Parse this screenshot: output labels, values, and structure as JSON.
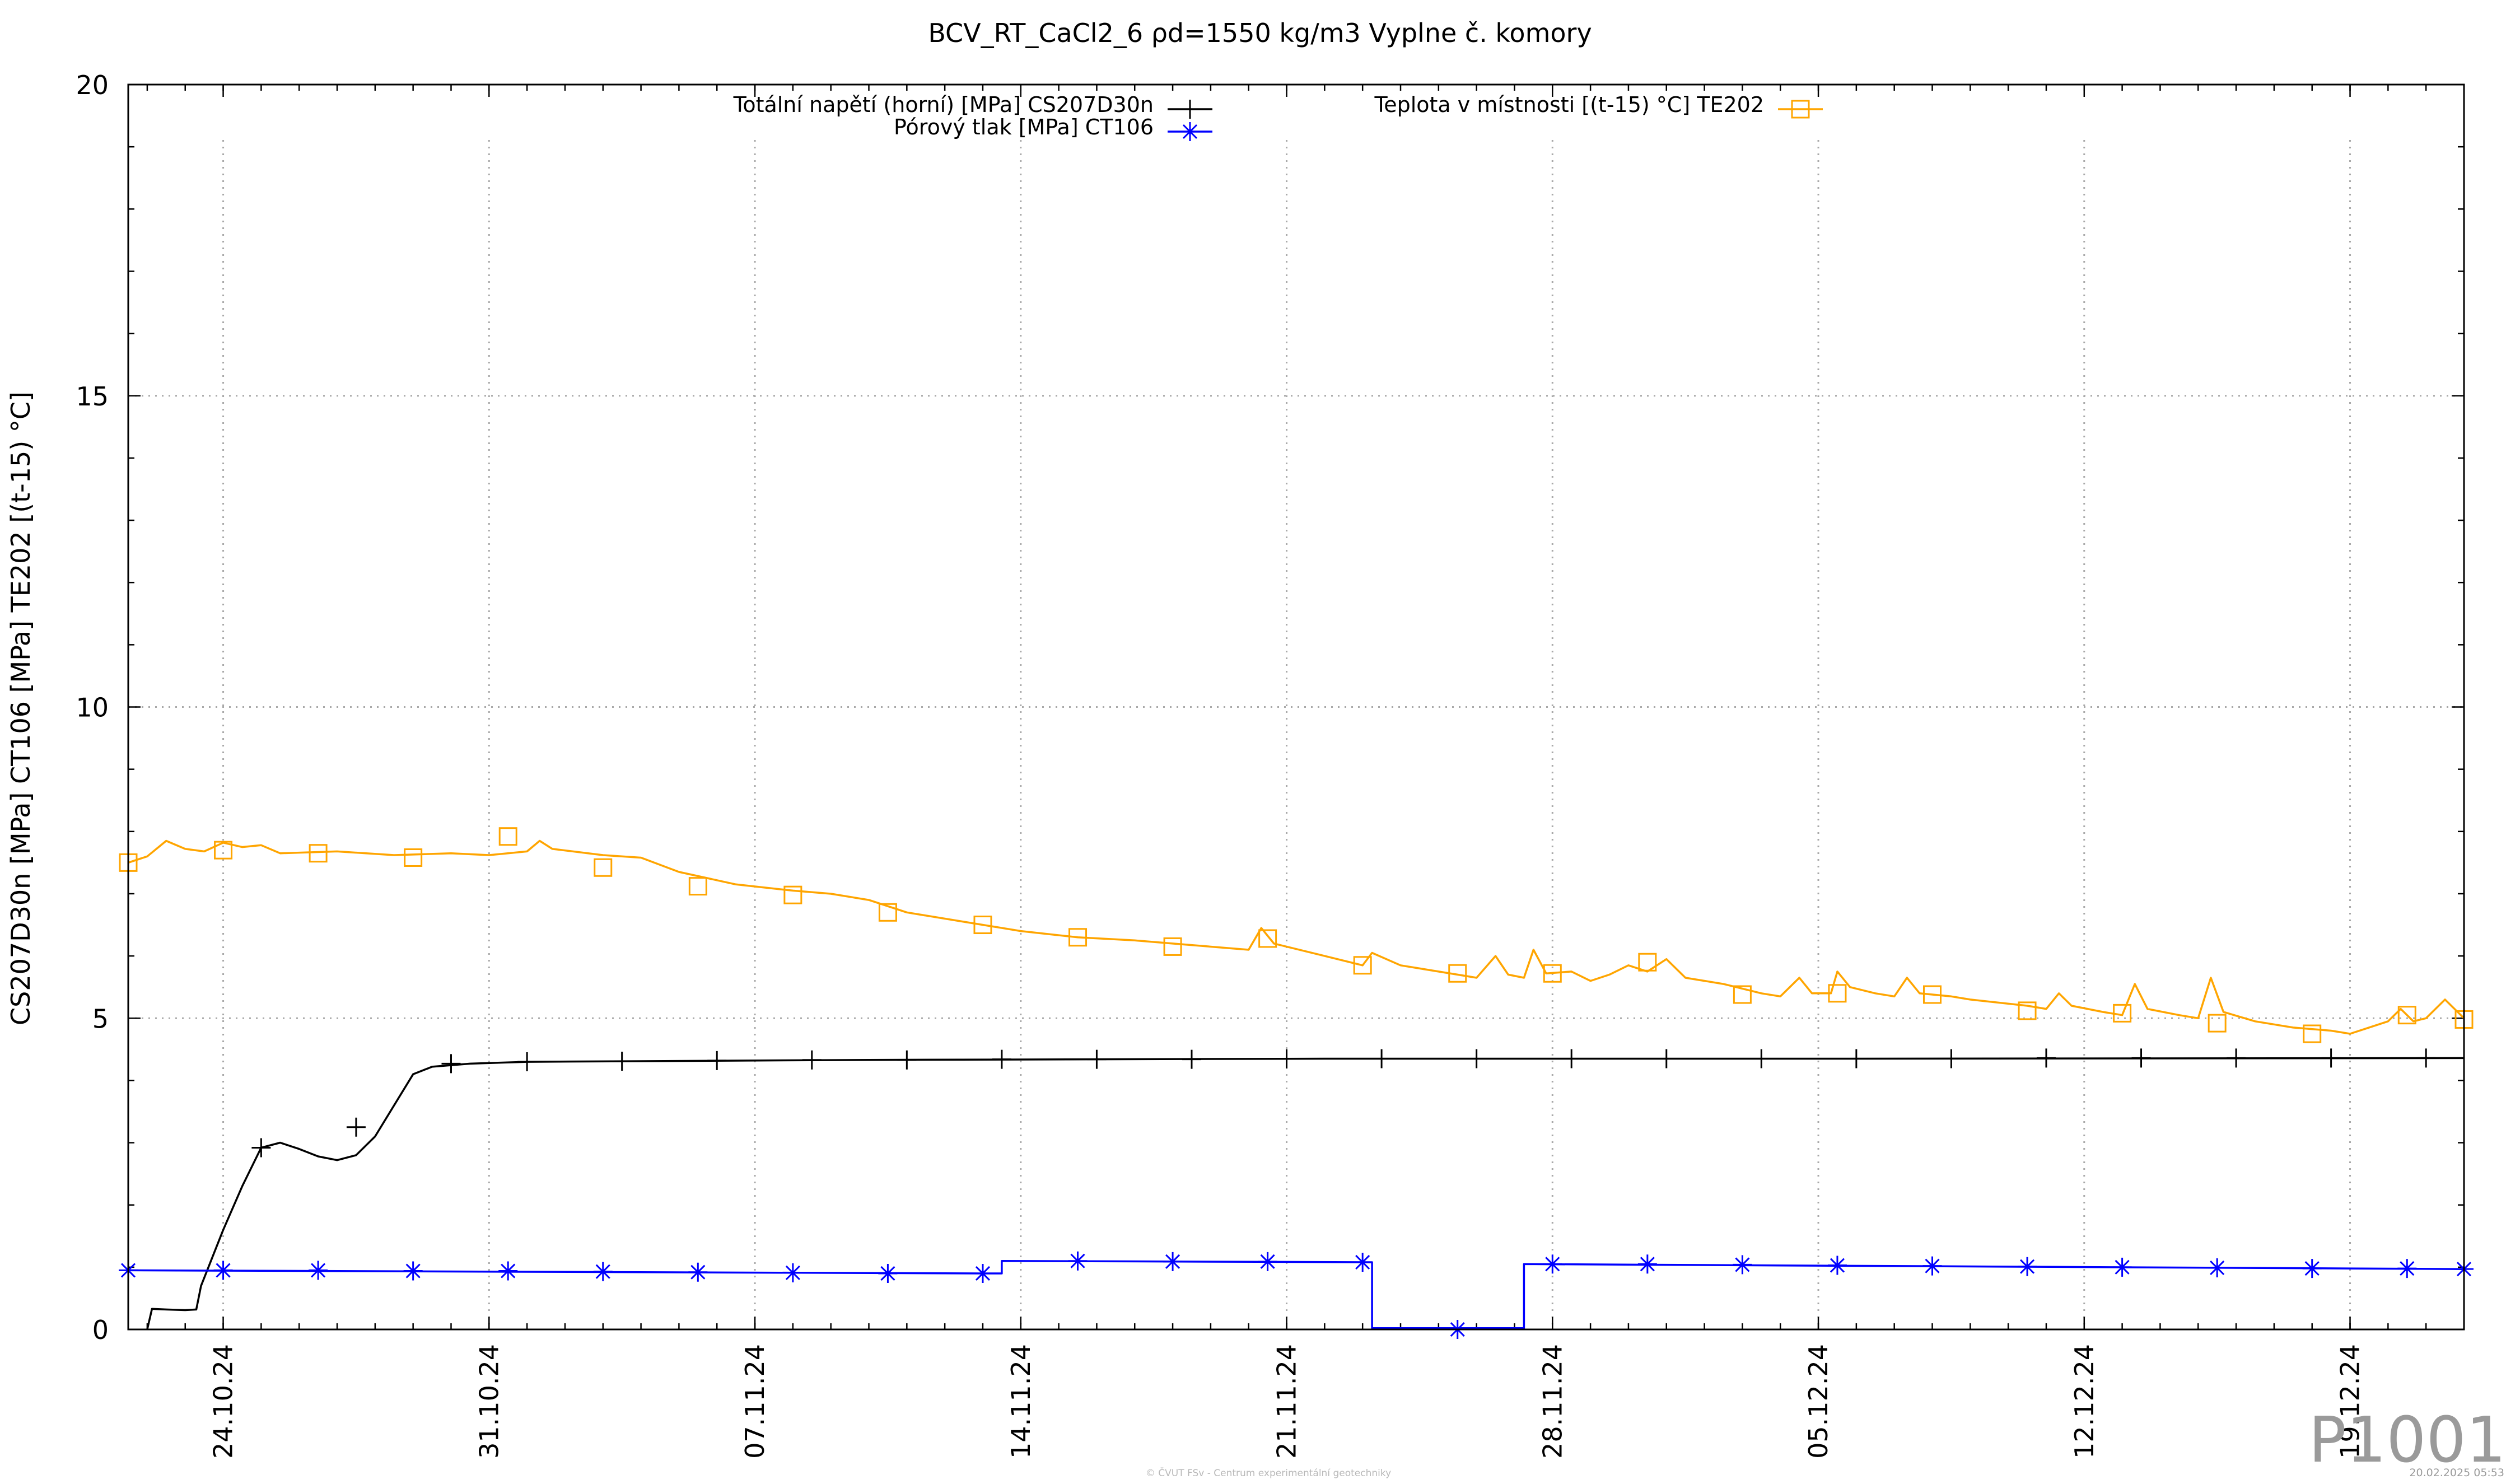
{
  "chart_data": {
    "type": "line",
    "title": "BCV_RT_CaCl2_6 ρd=1550 kg/m3 Vyplne č. komory",
    "ylabel": "CS207D30n [MPa] CT106 [MPa] TE202 [(t-15) °C]",
    "xlabel": "",
    "ylim": [
      0,
      20
    ],
    "xlim": [
      "2024-10-21T12:00",
      "2024-12-22T00:00"
    ],
    "grid": true,
    "legend_placement": "top",
    "yticks": [
      "0",
      "5",
      "10",
      "15",
      "20"
    ],
    "xticks": [
      "24.10.24",
      "31.10.24",
      "07.11.24",
      "14.11.24",
      "21.11.24",
      "28.11.24",
      "05.12.24",
      "12.12.24",
      "19.12.24"
    ],
    "series": [
      {
        "name": "Totální napětí (horní) [MPa] CS207D30n",
        "color": "#000000",
        "marker": "plus",
        "points": [
          [
            "2024-10-22T00:00",
            0.0
          ],
          [
            "2024-10-22T03:00",
            0.33
          ],
          [
            "2024-10-22T12:00",
            0.32
          ],
          [
            "2024-10-23T00:00",
            0.31
          ],
          [
            "2024-10-23T07:00",
            0.32
          ],
          [
            "2024-10-23T10:00",
            0.7
          ],
          [
            "2024-10-24T00:00",
            1.6
          ],
          [
            "2024-10-24T12:00",
            2.3
          ],
          [
            "2024-10-25T00:00",
            2.92
          ],
          [
            "2024-10-25T12:00",
            3.0
          ],
          [
            "2024-10-26T00:00",
            2.9
          ],
          [
            "2024-10-26T12:00",
            2.78
          ],
          [
            "2024-10-27T00:00",
            2.72
          ],
          [
            "2024-10-27T12:00",
            2.8
          ],
          [
            "2024-10-28T00:00",
            3.1
          ],
          [
            "2024-10-28T12:00",
            3.6
          ],
          [
            "2024-10-29T00:00",
            4.1
          ],
          [
            "2024-10-29T12:00",
            4.22
          ],
          [
            "2024-10-30T12:00",
            4.27
          ],
          [
            "2024-11-01T00:00",
            4.3
          ],
          [
            "2024-11-10T00:00",
            4.33
          ],
          [
            "2024-11-22T00:00",
            4.35
          ],
          [
            "2024-12-05T00:00",
            4.35
          ],
          [
            "2024-12-22T00:00",
            4.36
          ]
        ],
        "marker_points": [
          [
            "2024-10-25T00:00",
            2.92
          ],
          [
            "2024-10-27T12:00",
            3.25
          ],
          [
            "2024-10-30T00:00",
            4.27
          ],
          [
            "2024-11-01T00:00",
            4.3
          ],
          [
            "2024-11-03T12:00",
            4.31
          ],
          [
            "2024-11-06T00:00",
            4.32
          ],
          [
            "2024-11-08T12:00",
            4.33
          ],
          [
            "2024-11-11T00:00",
            4.33
          ],
          [
            "2024-11-13T12:00",
            4.34
          ],
          [
            "2024-11-16T00:00",
            4.34
          ],
          [
            "2024-11-18T12:00",
            4.34
          ],
          [
            "2024-11-21T00:00",
            4.35
          ],
          [
            "2024-11-23T12:00",
            4.35
          ],
          [
            "2024-11-26T00:00",
            4.35
          ],
          [
            "2024-11-28T12:00",
            4.35
          ],
          [
            "2024-12-01T00:00",
            4.35
          ],
          [
            "2024-12-03T12:00",
            4.35
          ],
          [
            "2024-12-06T00:00",
            4.35
          ],
          [
            "2024-12-08T12:00",
            4.35
          ],
          [
            "2024-12-11T00:00",
            4.36
          ],
          [
            "2024-12-13T12:00",
            4.36
          ],
          [
            "2024-12-16T00:00",
            4.36
          ],
          [
            "2024-12-18T12:00",
            4.36
          ],
          [
            "2024-12-21T00:00",
            4.36
          ]
        ]
      },
      {
        "name": "Pórový tlak [MPa] CT106",
        "color": "#0000ff",
        "marker": "star",
        "points": [
          [
            "2024-10-21T12:00",
            0.95
          ],
          [
            "2024-11-13T00:00",
            0.9
          ],
          [
            "2024-11-13T12:00",
            0.9
          ],
          [
            "2024-11-13T12:00",
            1.1
          ],
          [
            "2024-11-23T06:00",
            1.08
          ],
          [
            "2024-11-23T06:00",
            0.02
          ],
          [
            "2024-11-27T06:00",
            0.02
          ],
          [
            "2024-11-27T06:00",
            1.05
          ],
          [
            "2024-12-22T00:00",
            0.97
          ]
        ],
        "marker_points": [
          [
            "2024-10-21T12:00",
            0.95
          ],
          [
            "2024-10-24T00:00",
            0.95
          ],
          [
            "2024-10-26T12:00",
            0.95
          ],
          [
            "2024-10-29T00:00",
            0.94
          ],
          [
            "2024-10-31T12:00",
            0.94
          ],
          [
            "2024-11-03T00:00",
            0.93
          ],
          [
            "2024-11-05T12:00",
            0.92
          ],
          [
            "2024-11-08T00:00",
            0.91
          ],
          [
            "2024-11-10T12:00",
            0.9
          ],
          [
            "2024-11-13T00:00",
            0.9
          ],
          [
            "2024-11-15T12:00",
            1.1
          ],
          [
            "2024-11-18T00:00",
            1.09
          ],
          [
            "2024-11-20T12:00",
            1.09
          ],
          [
            "2024-11-23T00:00",
            1.08
          ],
          [
            "2024-11-25T12:00",
            0.0
          ],
          [
            "2024-11-28T00:00",
            1.05
          ],
          [
            "2024-11-30T12:00",
            1.05
          ],
          [
            "2024-12-03T00:00",
            1.04
          ],
          [
            "2024-12-05T12:00",
            1.03
          ],
          [
            "2024-12-08T00:00",
            1.02
          ],
          [
            "2024-12-10T12:00",
            1.01
          ],
          [
            "2024-12-13T00:00",
            1.0
          ],
          [
            "2024-12-15T12:00",
            0.99
          ],
          [
            "2024-12-18T00:00",
            0.98
          ],
          [
            "2024-12-20T12:00",
            0.98
          ],
          [
            "2024-12-22T00:00",
            0.97
          ]
        ]
      },
      {
        "name": "Teplota v místnosti [(t-15) °C] TE202",
        "color": "#ffa500",
        "marker": "square",
        "points": [
          [
            "2024-10-21T12:00",
            7.5
          ],
          [
            "2024-10-22T00:00",
            7.6
          ],
          [
            "2024-10-22T12:00",
            7.85
          ],
          [
            "2024-10-23T00:00",
            7.72
          ],
          [
            "2024-10-23T12:00",
            7.68
          ],
          [
            "2024-10-24T00:00",
            7.82
          ],
          [
            "2024-10-24T12:00",
            7.75
          ],
          [
            "2024-10-25T00:00",
            7.78
          ],
          [
            "2024-10-25T12:00",
            7.65
          ],
          [
            "2024-10-27T00:00",
            7.68
          ],
          [
            "2024-10-28T12:00",
            7.62
          ],
          [
            "2024-10-30T00:00",
            7.65
          ],
          [
            "2024-10-31T00:00",
            7.62
          ],
          [
            "2024-11-01T00:00",
            7.68
          ],
          [
            "2024-11-01T08:00",
            7.85
          ],
          [
            "2024-11-01T16:00",
            7.72
          ],
          [
            "2024-11-03T00:00",
            7.62
          ],
          [
            "2024-11-04T00:00",
            7.58
          ],
          [
            "2024-11-05T00:00",
            7.35
          ],
          [
            "2024-11-06T12:00",
            7.15
          ],
          [
            "2024-11-08T00:00",
            7.05
          ],
          [
            "2024-11-09T00:00",
            7.0
          ],
          [
            "2024-11-10T00:00",
            6.9
          ],
          [
            "2024-11-11T00:00",
            6.7
          ],
          [
            "2024-11-12T12:00",
            6.55
          ],
          [
            "2024-11-14T00:00",
            6.4
          ],
          [
            "2024-11-15T12:00",
            6.3
          ],
          [
            "2024-11-17T00:00",
            6.25
          ],
          [
            "2024-11-18T00:00",
            6.2
          ],
          [
            "2024-11-20T00:00",
            6.1
          ],
          [
            "2024-11-20T08:00",
            6.45
          ],
          [
            "2024-11-20T16:00",
            6.2
          ],
          [
            "2024-11-22T00:00",
            6.0
          ],
          [
            "2024-11-23T00:00",
            5.85
          ],
          [
            "2024-11-23T06:00",
            6.05
          ],
          [
            "2024-11-24T00:00",
            5.85
          ],
          [
            "2024-11-25T12:00",
            5.7
          ],
          [
            "2024-11-26T00:00",
            5.65
          ],
          [
            "2024-11-26T12:00",
            6.0
          ],
          [
            "2024-11-26T20:00",
            5.7
          ],
          [
            "2024-11-27T06:00",
            5.65
          ],
          [
            "2024-11-27T12:00",
            6.1
          ],
          [
            "2024-11-27T20:00",
            5.72
          ],
          [
            "2024-11-28T12:00",
            5.75
          ],
          [
            "2024-11-29T00:00",
            5.6
          ],
          [
            "2024-11-29T12:00",
            5.7
          ],
          [
            "2024-11-30T00:00",
            5.85
          ],
          [
            "2024-11-30T12:00",
            5.75
          ],
          [
            "2024-12-01T00:00",
            5.95
          ],
          [
            "2024-12-01T12:00",
            5.65
          ],
          [
            "2024-12-02T12:00",
            5.55
          ],
          [
            "2024-12-03T12:00",
            5.4
          ],
          [
            "2024-12-04T00:00",
            5.35
          ],
          [
            "2024-12-04T12:00",
            5.65
          ],
          [
            "2024-12-04T20:00",
            5.4
          ],
          [
            "2024-12-05T08:00",
            5.4
          ],
          [
            "2024-12-05T12:00",
            5.75
          ],
          [
            "2024-12-05T20:00",
            5.5
          ],
          [
            "2024-12-06T12:00",
            5.4
          ],
          [
            "2024-12-07T00:00",
            5.35
          ],
          [
            "2024-12-07T08:00",
            5.65
          ],
          [
            "2024-12-07T16:00",
            5.4
          ],
          [
            "2024-12-08T12:00",
            5.35
          ],
          [
            "2024-12-09T00:00",
            5.3
          ],
          [
            "2024-12-10T12:00",
            5.2
          ],
          [
            "2024-12-11T00:00",
            5.15
          ],
          [
            "2024-12-11T08:00",
            5.4
          ],
          [
            "2024-12-11T16:00",
            5.2
          ],
          [
            "2024-12-12T12:00",
            5.1
          ],
          [
            "2024-12-13T00:00",
            5.05
          ],
          [
            "2024-12-13T08:00",
            5.55
          ],
          [
            "2024-12-13T16:00",
            5.15
          ],
          [
            "2024-12-14T12:00",
            5.05
          ],
          [
            "2024-12-15T00:00",
            5.0
          ],
          [
            "2024-12-15T08:00",
            5.65
          ],
          [
            "2024-12-15T16:00",
            5.1
          ],
          [
            "2024-12-16T12:00",
            4.95
          ],
          [
            "2024-12-17T12:00",
            4.85
          ],
          [
            "2024-12-18T12:00",
            4.8
          ],
          [
            "2024-12-19T00:00",
            4.75
          ],
          [
            "2024-12-19T12:00",
            4.85
          ],
          [
            "2024-12-20T00:00",
            4.95
          ],
          [
            "2024-12-20T08:00",
            5.15
          ],
          [
            "2024-12-20T16:00",
            4.95
          ],
          [
            "2024-12-21T00:00",
            5.0
          ],
          [
            "2024-12-21T12:00",
            5.3
          ],
          [
            "2024-12-22T00:00",
            5.0
          ]
        ],
        "marker_points": [
          [
            "2024-10-21T12:00",
            7.5
          ],
          [
            "2024-10-24T00:00",
            7.7
          ],
          [
            "2024-10-26T12:00",
            7.65
          ],
          [
            "2024-10-29T00:00",
            7.58
          ],
          [
            "2024-10-31T12:00",
            7.92
          ],
          [
            "2024-11-03T00:00",
            7.42
          ],
          [
            "2024-11-05T12:00",
            7.12
          ],
          [
            "2024-11-08T00:00",
            6.98
          ],
          [
            "2024-11-10T12:00",
            6.7
          ],
          [
            "2024-11-13T00:00",
            6.5
          ],
          [
            "2024-11-15T12:00",
            6.3
          ],
          [
            "2024-11-18T00:00",
            6.15
          ],
          [
            "2024-11-20T12:00",
            6.28
          ],
          [
            "2024-11-23T00:00",
            5.85
          ],
          [
            "2024-11-25T12:00",
            5.72
          ],
          [
            "2024-11-28T00:00",
            5.72
          ],
          [
            "2024-11-30T12:00",
            5.9
          ],
          [
            "2024-12-03T00:00",
            5.38
          ],
          [
            "2024-12-05T12:00",
            5.4
          ],
          [
            "2024-12-08T00:00",
            5.38
          ],
          [
            "2024-12-10T12:00",
            5.12
          ],
          [
            "2024-12-13T00:00",
            5.08
          ],
          [
            "2024-12-15T12:00",
            4.92
          ],
          [
            "2024-12-18T00:00",
            4.75
          ],
          [
            "2024-12-20T12:00",
            5.05
          ],
          [
            "2024-12-22T00:00",
            4.98
          ]
        ]
      }
    ]
  },
  "watermark": "P1001",
  "footer_center": "© ČVUT FSv - Centrum experimentální geotechniky",
  "footer_right": "20.02.2025 05:53"
}
